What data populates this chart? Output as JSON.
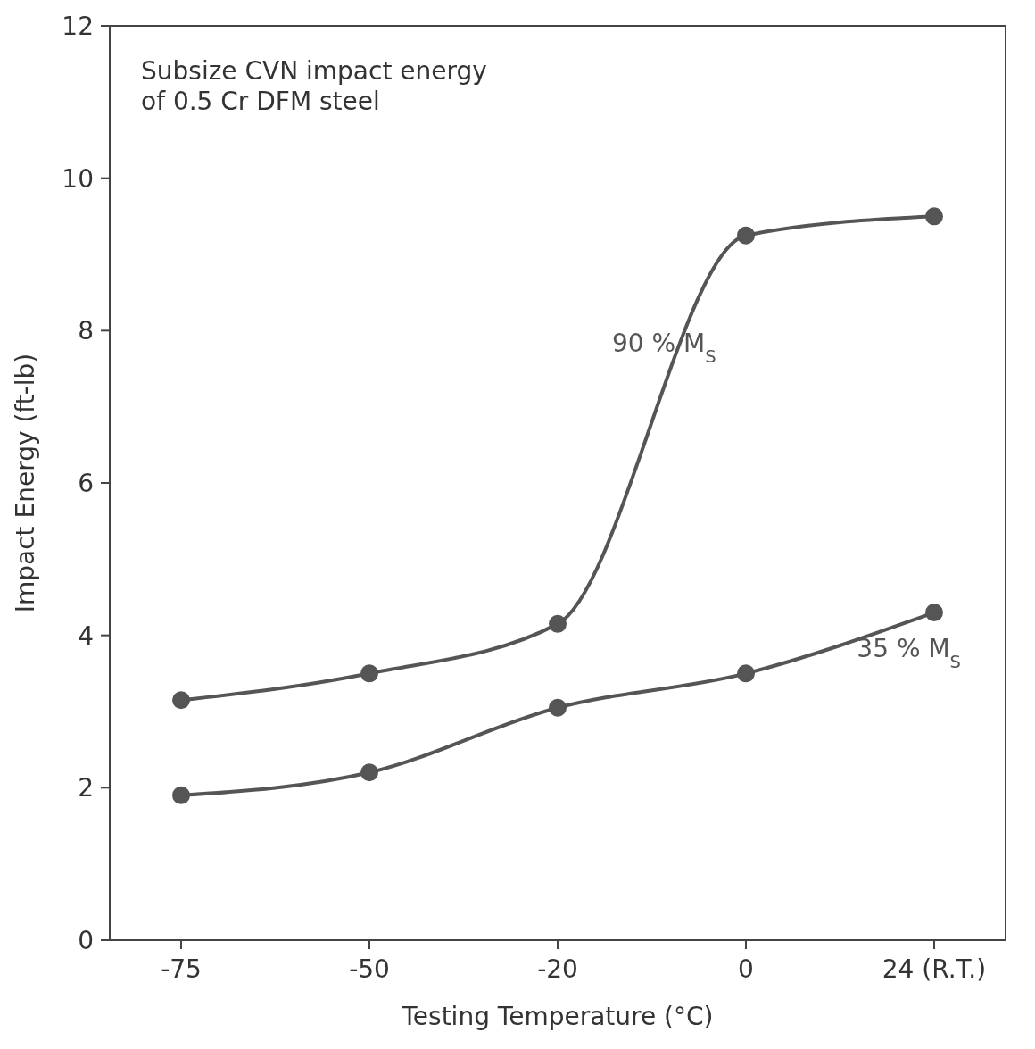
{
  "chart_data": {
    "type": "line",
    "title": "Subsize CVN impact energy of 0.5 Cr DFM steel",
    "xlabel": "Testing Temperature (°C)",
    "ylabel": "Impact Energy (ft-lb)",
    "categories": [
      "-75",
      "-50",
      "-20",
      "0",
      "24 (R.T.)"
    ],
    "series": [
      {
        "name": "90 % M$_{S}$",
        "color": "#555555",
        "values": [
          3.15,
          3.5,
          4.15,
          9.25,
          9.5
        ]
      },
      {
        "name": "35 % M$_{S}$",
        "color": "#555555",
        "values": [
          1.9,
          2.2,
          3.05,
          3.5,
          4.3
        ]
      }
    ],
    "ylim": [
      0,
      12
    ],
    "yticks": [
      0,
      2,
      4,
      6,
      8,
      10,
      12
    ],
    "marker": "circle",
    "line_style": "solid"
  }
}
